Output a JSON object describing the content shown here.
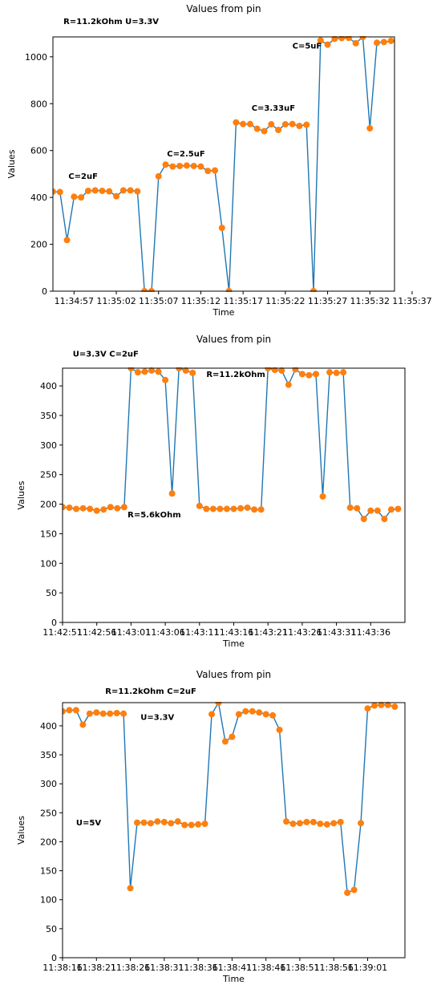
{
  "chart_data": [
    {
      "type": "line",
      "title": "Values from pin",
      "xlabel": "Time",
      "ylabel": "Values",
      "ylim": [
        0,
        1085
      ],
      "xlim": [
        0,
        48.5
      ],
      "yticks": [
        0,
        200,
        400,
        600,
        800,
        1000
      ],
      "xticks": [
        {
          "x": 3,
          "label": "11:34:57"
        },
        {
          "x": 9,
          "label": "11:35:02"
        },
        {
          "x": 15,
          "label": "11:35:07"
        },
        {
          "x": 21,
          "label": "11:35:12"
        },
        {
          "x": 27,
          "label": "11:35:17"
        },
        {
          "x": 33,
          "label": "11:35:22"
        },
        {
          "x": 39,
          "label": "11:35:27"
        },
        {
          "x": 45,
          "label": "11:35:32"
        },
        {
          "x": 51,
          "label": "11:35:37"
        }
      ],
      "series": [
        {
          "values": [
            425,
            423,
            218,
            403,
            400,
            428,
            430,
            428,
            426,
            405,
            430,
            430,
            426,
            0,
            0,
            490,
            540,
            532,
            534,
            536,
            534,
            532,
            513,
            515,
            270,
            0,
            720,
            713,
            713,
            693,
            683,
            712,
            688,
            712,
            713,
            705,
            710,
            0,
            1070,
            1052,
            1077,
            1080,
            1081,
            1058,
            1085,
            695,
            1060,
            1063,
            1068,
            1065
          ]
        }
      ],
      "annotations": [
        {
          "text": "R=11.2kOhm U=3.3V",
          "x": 1.5,
          "y": 1140
        },
        {
          "text": "C=2uF",
          "x": 2.2,
          "y": 480
        },
        {
          "text": "C=2.5uF",
          "x": 16.2,
          "y": 575
        },
        {
          "text": "C=3.33uF",
          "x": 28.2,
          "y": 770
        },
        {
          "text": "C=5uF",
          "x": 34,
          "y": 1035
        }
      ],
      "grid": false
    },
    {
      "type": "line",
      "title": "Values from pin",
      "xlabel": "Time",
      "ylabel": "Values",
      "ylim": [
        0,
        430
      ],
      "xlim": [
        0,
        50
      ],
      "yticks": [
        0,
        50,
        100,
        150,
        200,
        250,
        300,
        350,
        400
      ],
      "xticks": [
        {
          "x": 0,
          "label": "11:42:51"
        },
        {
          "x": 5,
          "label": "11:42:56"
        },
        {
          "x": 10,
          "label": "11:43:01"
        },
        {
          "x": 15,
          "label": "11:43:06"
        },
        {
          "x": 20,
          "label": "11:43:11"
        },
        {
          "x": 25,
          "label": "11:43:16"
        },
        {
          "x": 30,
          "label": "11:43:21"
        },
        {
          "x": 35,
          "label": "11:43:26"
        },
        {
          "x": 40,
          "label": "11:43:31"
        },
        {
          "x": 45,
          "label": "11:43:36"
        }
      ],
      "series": [
        {
          "values": [
            195,
            194,
            192,
            193,
            192,
            189,
            191,
            195,
            193,
            195,
            430,
            423,
            424,
            426,
            424,
            410,
            218,
            430,
            426,
            422,
            197,
            192,
            192,
            192,
            192,
            192,
            193,
            194,
            191,
            191,
            430,
            427,
            426,
            402,
            428,
            420,
            418,
            420,
            213,
            423,
            422,
            423,
            194,
            193,
            175,
            189,
            189,
            175,
            191,
            192
          ]
        }
      ],
      "annotations": [
        {
          "text": "U=3.3V  C=2uF",
          "x": 1.5,
          "y": 450
        },
        {
          "text": "R=11.2kOhm",
          "x": 21,
          "y": 415
        },
        {
          "text": "R=5.6kOhm",
          "x": 9.5,
          "y": 178
        }
      ],
      "grid": false
    },
    {
      "type": "line",
      "title": "Values from pin",
      "xlabel": "Time",
      "ylabel": "Values",
      "ylim": [
        0,
        440
      ],
      "xlim": [
        0,
        50.5
      ],
      "yticks": [
        0,
        50,
        100,
        150,
        200,
        250,
        300,
        350,
        400
      ],
      "xticks": [
        {
          "x": 0,
          "label": "11:38:16"
        },
        {
          "x": 5,
          "label": "11:38:21"
        },
        {
          "x": 10,
          "label": "11:38:26"
        },
        {
          "x": 15,
          "label": "11:38:31"
        },
        {
          "x": 20,
          "label": "11:38:36"
        },
        {
          "x": 25,
          "label": "11:38:41"
        },
        {
          "x": 30,
          "label": "11:38:46"
        },
        {
          "x": 35,
          "label": "11:38:51"
        },
        {
          "x": 40,
          "label": "11:38:56"
        },
        {
          "x": 45,
          "label": "11:39:01"
        }
      ],
      "series": [
        {
          "values": [
            425,
            427,
            427,
            402,
            421,
            423,
            421,
            421,
            422,
            421,
            120,
            233,
            233,
            232,
            235,
            234,
            232,
            235,
            229,
            229,
            230,
            231,
            420,
            440,
            373,
            381,
            420,
            425,
            425,
            423,
            420,
            418,
            393,
            235,
            231,
            232,
            234,
            234,
            231,
            230,
            232,
            234,
            112,
            117,
            232,
            430,
            435,
            436,
            436,
            433
          ]
        }
      ],
      "annotations": [
        {
          "text": "R=11.2kOhm C=2uF",
          "x": 6.3,
          "y": 455
        },
        {
          "text": "U=3.3V",
          "x": 11.5,
          "y": 410
        },
        {
          "text": "U=5V",
          "x": 2,
          "y": 228
        }
      ],
      "grid": false
    }
  ]
}
